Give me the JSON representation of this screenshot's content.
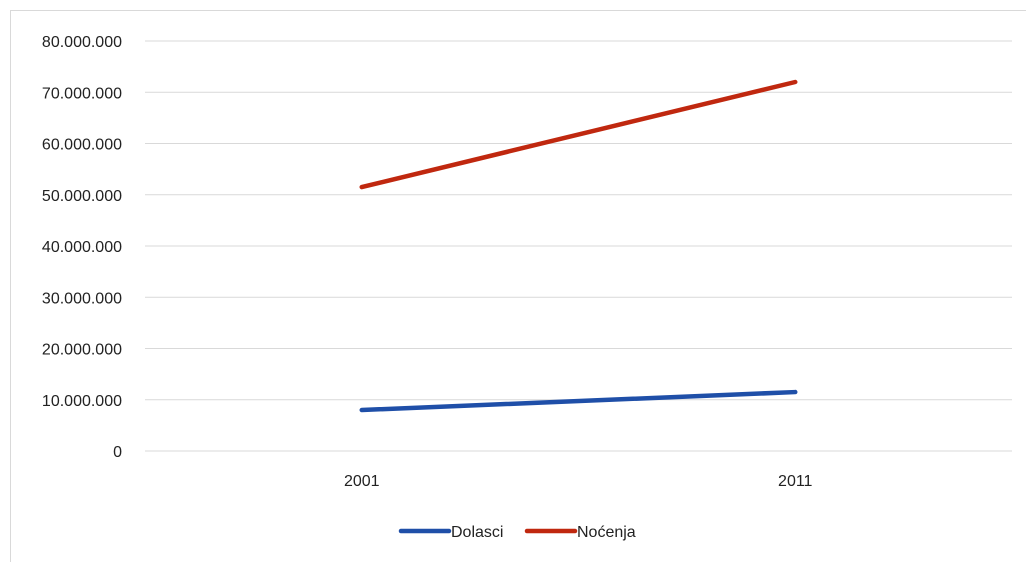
{
  "chart_data": {
    "type": "line",
    "categories": [
      "2001",
      "2011"
    ],
    "series": [
      {
        "name": "Dolasci",
        "values": [
          8000000,
          11500000
        ],
        "color": "#1f4fa8"
      },
      {
        "name": "Noćenja",
        "values": [
          51500000,
          72000000
        ],
        "color": "#c0280f"
      }
    ],
    "yticks": [
      "0",
      "10.000.000",
      "20.000.000",
      "30.000.000",
      "40.000.000",
      "50.000.000",
      "60.000.000",
      "70.000.000",
      "80.000.000"
    ],
    "ylim": [
      0,
      80000000
    ],
    "grid": true,
    "grid_color": "#d9d9d9",
    "legend_position": "bottom"
  }
}
